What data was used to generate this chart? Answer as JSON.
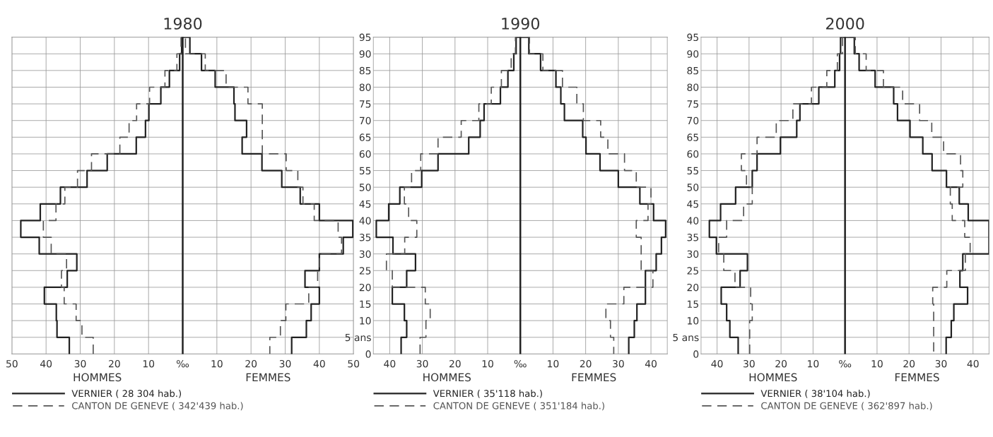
{
  "chart_data": [
    {
      "type": "step",
      "orientation": "horizontal",
      "title": "1980",
      "annotations": [
        "HOMMES",
        "FEMMES"
      ],
      "series": [
        {
          "name": "VERNIER ( 28 304 hab.)",
          "color": "#222222",
          "line_style": "solid",
          "x": [
            0,
            5,
            10,
            15,
            20,
            25,
            30,
            35,
            40,
            45,
            50,
            55,
            60,
            65,
            70,
            75,
            80,
            85,
            90,
            95,
            90,
            85,
            80,
            75,
            70,
            65,
            60,
            55,
            50,
            45,
            40,
            35,
            30,
            25,
            20,
            15,
            10,
            5,
            0
          ],
          "values": [
            -33.2,
            -36.8,
            -37,
            -40.5,
            -33.8,
            -31,
            -42,
            -47.4,
            -41.7,
            -35.8,
            -28,
            -22.1,
            -13.6,
            -10.9,
            -9.9,
            -6.4,
            -3.9,
            -0.9,
            -0.3,
            2.1,
            5.5,
            9.5,
            15,
            15.3,
            18.7,
            17.4,
            23.2,
            29,
            34.4,
            40,
            49.8,
            47,
            40,
            35.8,
            40,
            37.6,
            36.2,
            31.9,
            31.9
          ]
        },
        {
          "name": "CANTON DE GENEVE ( 342'439 hab.)",
          "color": "#555555",
          "line_style": "dashed",
          "x": [
            0,
            5,
            10,
            15,
            20,
            25,
            30,
            35,
            40,
            45,
            50,
            55,
            60,
            65,
            70,
            75,
            80,
            85,
            90,
            95,
            90,
            85,
            80,
            75,
            70,
            65,
            60,
            55,
            50,
            45,
            40,
            35,
            30,
            25,
            20,
            15,
            10,
            5,
            0
          ],
          "values": [
            -26.2,
            -29.5,
            -31.2,
            -34.7,
            -35.5,
            -34,
            -38.5,
            -40.8,
            -37.1,
            -34.5,
            -30.8,
            -26.7,
            -18.4,
            -15.7,
            -13.5,
            -9.7,
            -5.2,
            -1.7,
            -0.5,
            0.8,
            6.6,
            12.7,
            19.1,
            23.3,
            23.3,
            23.3,
            30.3,
            33.7,
            35.2,
            38.5,
            45.5,
            46.5,
            40,
            39.5,
            36.9,
            30.2,
            28.6,
            25.5,
            25.5
          ]
        }
      ],
      "xlim": [
        -50,
        50
      ],
      "xticks": [
        {
          "value": -50,
          "label": "50"
        },
        {
          "value": -40,
          "label": "40"
        },
        {
          "value": -30,
          "label": "30"
        },
        {
          "value": -20,
          "label": "20"
        },
        {
          "value": -10,
          "label": "10"
        },
        {
          "value": 0,
          "label": "‰"
        },
        10,
        20,
        30,
        40,
        50
      ],
      "ylim": [
        0,
        95
      ],
      "yticks": [
        0,
        5,
        10,
        15,
        20,
        25,
        30,
        35,
        40,
        45,
        50,
        55,
        60,
        65,
        70,
        75,
        80,
        85,
        90,
        95
      ],
      "tick_labels": "x",
      "grid": true,
      "legend": "bottom",
      "marker": "none",
      "ref_lines": [
        {
          "axis": "x",
          "value": 0,
          "color": "#222222"
        }
      ]
    },
    {
      "type": "step",
      "orientation": "horizontal",
      "title": "1990",
      "annotations": [
        "HOMMES",
        "FEMMES"
      ],
      "series": [
        {
          "name": "VERNIER ( 35'118 hab.)",
          "color": "#222222",
          "line_style": "solid",
          "x": [
            0,
            5,
            10,
            15,
            20,
            25,
            30,
            35,
            40,
            45,
            50,
            55,
            60,
            65,
            70,
            75,
            80,
            85,
            90,
            95,
            90,
            85,
            80,
            75,
            70,
            65,
            60,
            55,
            50,
            45,
            40,
            35,
            30,
            25,
            20,
            15,
            10,
            5,
            0
          ],
          "values": [
            -36.5,
            -34.8,
            -35.5,
            -39.2,
            -34.8,
            -32.1,
            -39,
            -44.1,
            -40.3,
            -36.9,
            -30.2,
            -25.2,
            -15.8,
            -12.3,
            -11.1,
            -6.1,
            -3.8,
            -2,
            -1.3,
            2.6,
            6.2,
            10.9,
            12.4,
            13.5,
            19.1,
            20.1,
            24.4,
            30,
            36.6,
            40.8,
            44.5,
            43.2,
            41.6,
            38.3,
            38.3,
            35.7,
            34.9,
            33.2,
            33.2
          ]
        },
        {
          "name": "CANTON DE GENEVE ( 351'184 hab.)",
          "color": "#555555",
          "line_style": "dashed",
          "x": [
            0,
            5,
            10,
            15,
            20,
            25,
            30,
            35,
            40,
            45,
            50,
            55,
            60,
            65,
            70,
            75,
            80,
            85,
            90,
            95,
            90,
            85,
            80,
            75,
            70,
            65,
            60,
            55,
            50,
            45,
            40,
            35,
            30,
            25,
            20,
            15,
            10,
            5,
            0
          ],
          "values": [
            -30.7,
            -28.9,
            -27.6,
            -29.1,
            -39.2,
            -41,
            -35.4,
            -31.7,
            -34.2,
            -35.5,
            -33.3,
            -30.5,
            -25.2,
            -18.1,
            -12.7,
            -8.9,
            -5.8,
            -2.8,
            -1.5,
            2.8,
            6.9,
            12.9,
            17.3,
            19.3,
            24.6,
            26.8,
            31.9,
            35.5,
            40,
            39.1,
            35.5,
            37,
            37,
            40.6,
            31.7,
            26.2,
            27.6,
            28.6,
            28.6
          ]
        }
      ],
      "xlim": [
        -45,
        45
      ],
      "xticks": [
        {
          "value": -40,
          "label": "40"
        },
        {
          "value": -30,
          "label": "30"
        },
        {
          "value": -20,
          "label": "20"
        },
        {
          "value": -10,
          "label": "10"
        },
        {
          "value": 0,
          "label": "‰"
        },
        10,
        20,
        30,
        40
      ],
      "ylim": [
        0,
        95
      ],
      "yticks": [
        0,
        {
          "value": 5,
          "label": "5 ans"
        },
        10,
        15,
        20,
        25,
        30,
        35,
        40,
        45,
        50,
        55,
        60,
        65,
        70,
        75,
        80,
        85,
        90,
        95
      ],
      "grid": true,
      "legend": "bottom",
      "marker": "none",
      "ref_lines": [
        {
          "axis": "x",
          "value": 0,
          "color": "#222222"
        }
      ]
    },
    {
      "type": "step",
      "orientation": "horizontal",
      "title": "2000",
      "annotations": [
        "HOMMES",
        "FEMMES"
      ],
      "series": [
        {
          "name": "VERNIER ( 38'104 hab.)",
          "color": "#222222",
          "line_style": "solid",
          "x": [
            0,
            5,
            10,
            15,
            20,
            25,
            30,
            35,
            40,
            45,
            50,
            55,
            60,
            65,
            70,
            75,
            80,
            85,
            90,
            95,
            90,
            85,
            80,
            75,
            70,
            65,
            60,
            55,
            50,
            45,
            40,
            35,
            30,
            25,
            20,
            15,
            10,
            5,
            0
          ],
          "values": [
            -33.4,
            -36,
            -37,
            -38.7,
            -32.8,
            -30.5,
            -40.2,
            -42.4,
            -38.9,
            -34.2,
            -29,
            -27.5,
            -20.2,
            -15.1,
            -14.1,
            -8.2,
            -3.2,
            -1.7,
            -1.4,
            2.9,
            4.4,
            9.4,
            15.2,
            16.4,
            20.3,
            24.3,
            27.2,
            31.7,
            35.7,
            38.5,
            45,
            45,
            36.8,
            35.9,
            38.3,
            34,
            33.2,
            31.6,
            31.6
          ]
        },
        {
          "name": "CANTON DE GENEVE ( 362'897 hab.)",
          "color": "#555555",
          "line_style": "dashed",
          "x": [
            0,
            5,
            10,
            15,
            20,
            25,
            30,
            35,
            40,
            45,
            50,
            55,
            60,
            65,
            70,
            75,
            80,
            85,
            90,
            95,
            90,
            85,
            80,
            75,
            70,
            65,
            60,
            55,
            50,
            45,
            40,
            35,
            30,
            25,
            20,
            15,
            10,
            5,
            0
          ],
          "values": [
            -29.8,
            -29.8,
            -29,
            -29.5,
            -34.4,
            -37.9,
            -39.5,
            -37,
            -31.7,
            -29,
            -30.8,
            -32.4,
            -27.5,
            -21.5,
            -16.3,
            -10.5,
            -5.7,
            -2.4,
            -0.8,
            3.2,
            6.6,
            12,
            18,
            23.3,
            27.1,
            30.8,
            36.1,
            36.8,
            32.9,
            33.5,
            37.4,
            39.1,
            37.6,
            31.8,
            27.4,
            27.7,
            27.7,
            27.7,
            27.7
          ]
        }
      ],
      "xlim": [
        -45,
        45
      ],
      "xticks": [
        {
          "value": -40,
          "label": "40"
        },
        {
          "value": -30,
          "label": "30"
        },
        {
          "value": -20,
          "label": "20"
        },
        {
          "value": -10,
          "label": "10"
        },
        {
          "value": 0,
          "label": "‰"
        },
        10,
        20,
        30,
        40
      ],
      "ylim": [
        0,
        95
      ],
      "yticks": [
        0,
        {
          "value": 5,
          "label": "5 ans"
        },
        10,
        15,
        20,
        25,
        30,
        35,
        40,
        45,
        50,
        55,
        60,
        65,
        70,
        75,
        80,
        85,
        90,
        95
      ],
      "grid": true,
      "legend": "bottom",
      "marker": "none",
      "ref_lines": [
        {
          "axis": "x",
          "value": 0,
          "color": "#222222"
        }
      ]
    }
  ]
}
